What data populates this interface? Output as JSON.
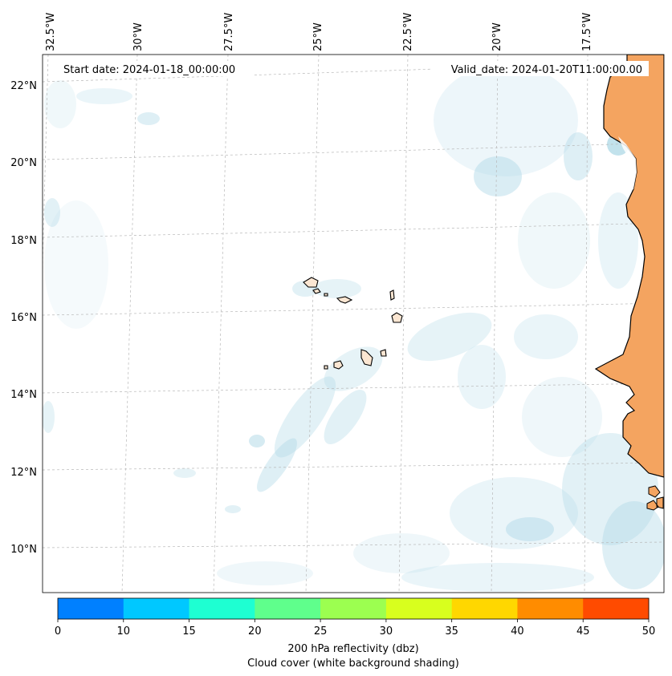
{
  "header": {
    "start_date": "Start date: 2024-01-18_00:00:00",
    "valid_date": "Valid_date: 2024-01-20T11:00:00.00"
  },
  "longitude_labels": [
    "32.5°W",
    "30°W",
    "27.5°W",
    "25°W",
    "22.5°W",
    "20°W",
    "17.5°W"
  ],
  "latitude_labels": [
    "22°N",
    "20°N",
    "18°N",
    "16°N",
    "14°N",
    "12°N",
    "10°N"
  ],
  "colorbar": {
    "ticks": [
      "0",
      "10",
      "15",
      "20",
      "25",
      "30",
      "35",
      "40",
      "45",
      "50"
    ],
    "colors": [
      "#0080ff",
      "#00c8ff",
      "#1effd2",
      "#5fff8c",
      "#9cff50",
      "#d8ff1e",
      "#ffd700",
      "#ff8c00",
      "#ff4b00"
    ],
    "label": "200 hPa reflectivity (dbz)",
    "sublabel": "Cloud cover (white background shading)"
  },
  "colors": {
    "land": "#f4a460",
    "cloud": "#add8e6",
    "coast": "#000000",
    "grid": "#b8b8b8"
  }
}
